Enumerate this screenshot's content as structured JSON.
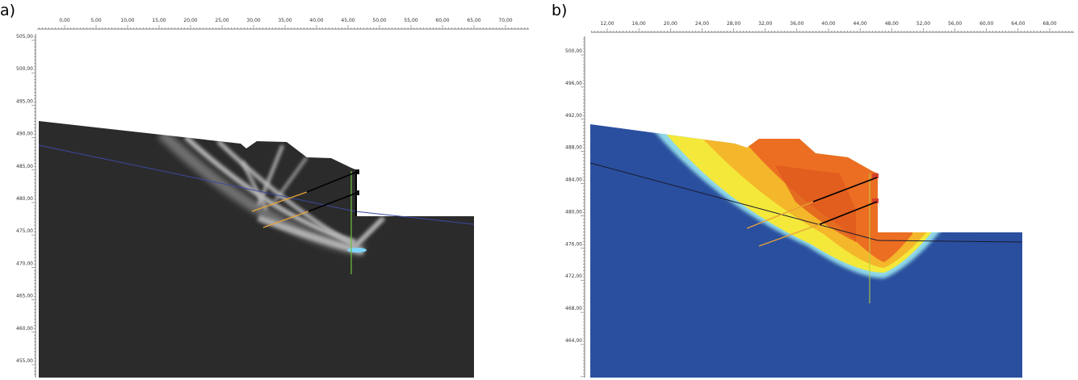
{
  "panels": [
    {
      "label": "a)",
      "x_ruler": [
        "0,00",
        "5,00",
        "10,00",
        "15,00",
        "20,00",
        "25,00",
        "30,00",
        "35,00",
        "40,00",
        "45,00",
        "50,00",
        "55,00",
        "60,00",
        "65,00",
        "70,00"
      ],
      "y_ruler": [
        "505,00",
        "500,00",
        "495,00",
        "490,00",
        "485,00",
        "480,00",
        "475,00",
        "470,00",
        "465,00",
        "460,00",
        "455,00"
      ]
    },
    {
      "label": "b)",
      "x_ruler": [
        "12,00",
        "16,00",
        "20,00",
        "24,00",
        "28,00",
        "32,00",
        "36,00",
        "40,00",
        "44,00",
        "48,00",
        "52,00",
        "56,00",
        "60,00",
        "64,00",
        "68,00"
      ],
      "y_ruler": [
        "500,00",
        "496,00",
        "492,00",
        "488,00",
        "484,00",
        "480,00",
        "476,00",
        "472,00",
        "468,00",
        "464,00"
      ]
    }
  ]
}
